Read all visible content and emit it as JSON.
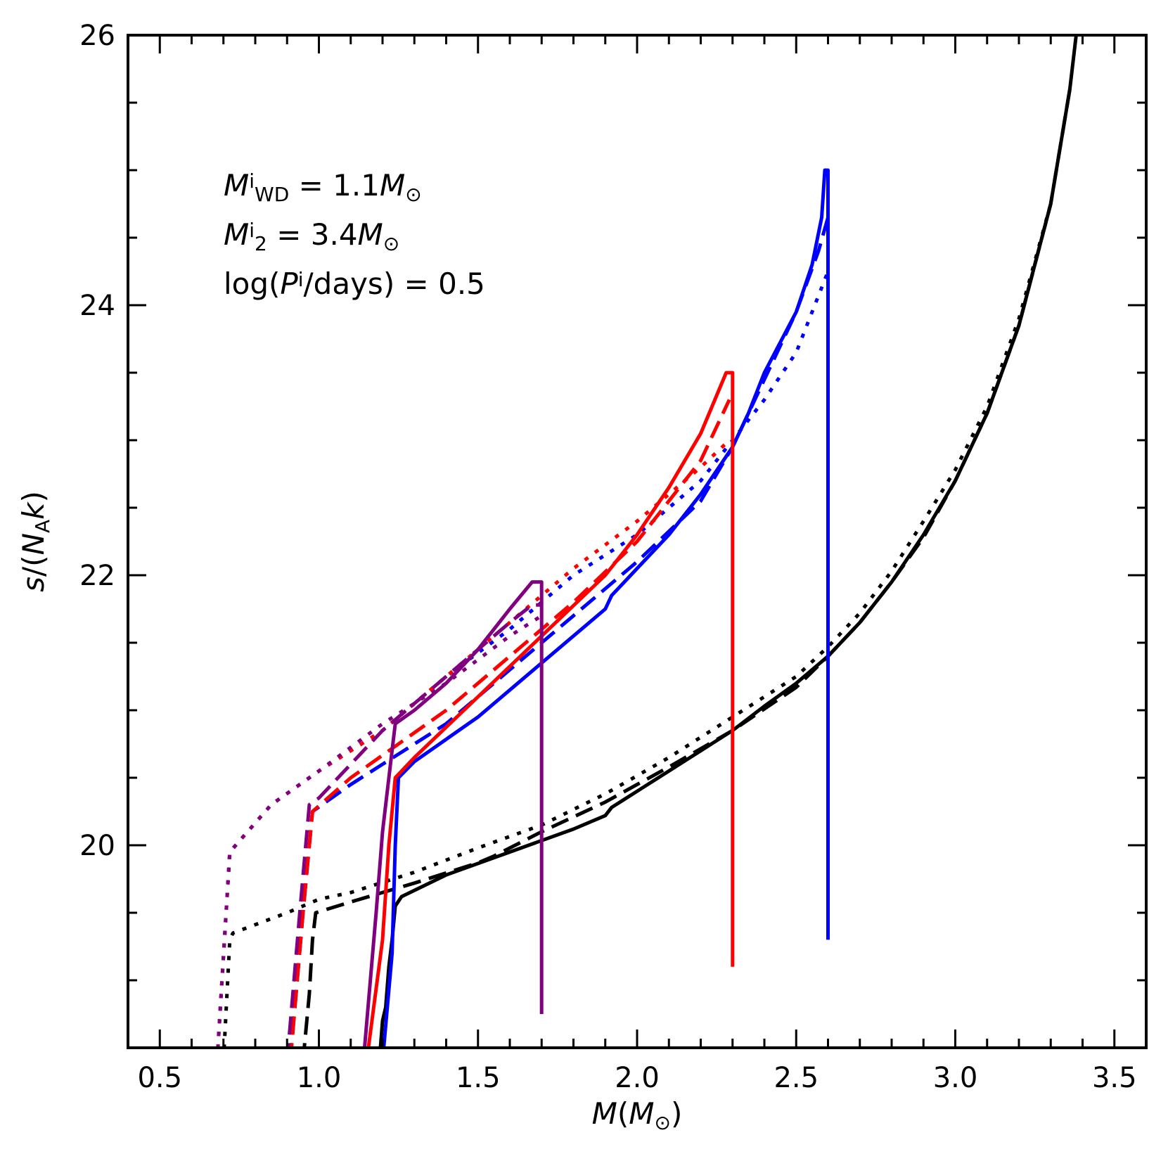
{
  "chart_data": {
    "type": "line",
    "xlabel": {
      "var": "M",
      "unit": "M",
      "unit_sub": "⊙"
    },
    "ylabel": {
      "pre": "s/(",
      "var": "N",
      "sub": "A",
      "var2": "k",
      "post": ")"
    },
    "xlim": [
      0.4,
      3.6
    ],
    "ylim": [
      18.5,
      26
    ],
    "x_ticks": [
      0.5,
      1.0,
      1.5,
      2.0,
      2.5,
      3.0,
      3.5
    ],
    "x_tick_labels": [
      "0.5",
      "1.0",
      "1.5",
      "2.0",
      "2.5",
      "3.0",
      "3.5"
    ],
    "x_minor_ticks": [
      0.6,
      0.7,
      0.8,
      0.9,
      1.1,
      1.2,
      1.3,
      1.4,
      1.6,
      1.7,
      1.8,
      1.9,
      2.1,
      2.2,
      2.3,
      2.4,
      2.6,
      2.7,
      2.8,
      2.9,
      3.1,
      3.2,
      3.3,
      3.4
    ],
    "y_ticks": [
      20,
      22,
      24,
      26
    ],
    "y_tick_labels": [
      "20",
      "22",
      "24",
      "26"
    ],
    "y_minor_ticks": [
      18.5,
      19.0,
      19.5,
      20.5,
      21.0,
      21.5,
      22.5,
      23.0,
      23.5,
      24.5,
      25.0,
      25.5
    ],
    "annotations": [
      {
        "parts": [
          [
            "M",
            "it"
          ],
          [
            "i",
            "sup"
          ],
          [
            "WD",
            "sub"
          ],
          [
            " = 1.1",
            ""
          ],
          [
            "M",
            "it"
          ],
          [
            "⊙",
            "sub"
          ]
        ]
      },
      {
        "parts": [
          [
            "M",
            "it"
          ],
          [
            "i",
            "sup"
          ],
          [
            "2",
            "sub"
          ],
          [
            " = 3.4",
            ""
          ],
          [
            "M",
            "it"
          ],
          [
            "⊙",
            "sub"
          ]
        ]
      },
      {
        "parts": [
          [
            "log(",
            ""
          ],
          [
            "P",
            "it"
          ],
          [
            "i",
            "sup"
          ],
          [
            "/days) = 0.5",
            ""
          ]
        ]
      }
    ],
    "series": [
      {
        "name": "black-solid",
        "color": "#000000",
        "style": "solid",
        "points": [
          [
            1.19,
            18.4
          ],
          [
            1.2,
            18.7
          ],
          [
            1.21,
            18.8
          ],
          [
            1.22,
            19.1
          ],
          [
            1.23,
            19.3
          ],
          [
            1.24,
            19.55
          ],
          [
            1.26,
            19.62
          ],
          [
            1.4,
            19.78
          ],
          [
            1.6,
            19.95
          ],
          [
            1.8,
            20.12
          ],
          [
            1.9,
            20.22
          ],
          [
            1.92,
            20.28
          ],
          [
            2.0,
            20.4
          ],
          [
            2.1,
            20.55
          ],
          [
            2.2,
            20.7
          ],
          [
            2.3,
            20.85
          ],
          [
            2.4,
            21.03
          ],
          [
            2.5,
            21.2
          ],
          [
            2.6,
            21.4
          ],
          [
            2.7,
            21.65
          ],
          [
            2.8,
            21.95
          ],
          [
            2.9,
            22.3
          ],
          [
            3.0,
            22.7
          ],
          [
            3.1,
            23.2
          ],
          [
            3.2,
            23.85
          ],
          [
            3.3,
            24.75
          ],
          [
            3.36,
            25.6
          ],
          [
            3.38,
            26.0
          ]
        ]
      },
      {
        "name": "black-dashed",
        "color": "#000000",
        "style": "dashed",
        "points": [
          [
            0.95,
            18.4
          ],
          [
            0.97,
            18.9
          ],
          [
            0.98,
            19.3
          ],
          [
            0.99,
            19.5
          ],
          [
            1.1,
            19.58
          ],
          [
            1.3,
            19.72
          ],
          [
            1.5,
            19.87
          ],
          [
            1.55,
            19.92
          ],
          [
            1.7,
            20.1
          ],
          [
            1.9,
            20.32
          ],
          [
            2.1,
            20.58
          ],
          [
            2.3,
            20.85
          ],
          [
            2.5,
            21.17
          ],
          [
            2.6,
            21.4
          ],
          [
            2.7,
            21.65
          ],
          [
            2.8,
            21.95
          ],
          [
            2.9,
            22.28
          ],
          [
            3.0,
            22.7
          ],
          [
            3.1,
            23.2
          ],
          [
            3.2,
            23.85
          ],
          [
            3.3,
            24.75
          ],
          [
            3.36,
            25.6
          ]
        ]
      },
      {
        "name": "black-dotted",
        "color": "#000000",
        "style": "dotted",
        "points": [
          [
            0.7,
            18.4
          ],
          [
            0.72,
            19.3
          ],
          [
            0.73,
            19.35
          ],
          [
            0.9,
            19.5
          ],
          [
            1.0,
            19.6
          ],
          [
            1.1,
            19.65
          ],
          [
            1.3,
            19.8
          ],
          [
            1.5,
            19.98
          ],
          [
            1.7,
            20.15
          ],
          [
            1.9,
            20.38
          ],
          [
            2.1,
            20.65
          ],
          [
            2.3,
            20.95
          ],
          [
            2.5,
            21.25
          ],
          [
            2.6,
            21.47
          ],
          [
            2.7,
            21.72
          ],
          [
            2.8,
            22.03
          ],
          [
            2.9,
            22.4
          ],
          [
            3.0,
            22.78
          ],
          [
            3.1,
            23.25
          ],
          [
            3.2,
            23.9
          ],
          [
            3.3,
            24.75
          ]
        ]
      },
      {
        "name": "blue-solid",
        "color": "#0000ff",
        "style": "solid",
        "points": [
          [
            1.2,
            18.4
          ],
          [
            1.23,
            19.2
          ],
          [
            1.24,
            20.0
          ],
          [
            1.25,
            20.5
          ],
          [
            1.3,
            20.62
          ],
          [
            1.5,
            20.95
          ],
          [
            1.7,
            21.35
          ],
          [
            1.9,
            21.75
          ],
          [
            1.92,
            21.85
          ],
          [
            2.0,
            22.05
          ],
          [
            2.1,
            22.3
          ],
          [
            2.2,
            22.6
          ],
          [
            2.3,
            22.95
          ],
          [
            2.35,
            23.2
          ],
          [
            2.4,
            23.5
          ],
          [
            2.5,
            23.95
          ],
          [
            2.55,
            24.3
          ],
          [
            2.58,
            24.65
          ],
          [
            2.59,
            25.0
          ],
          [
            2.6,
            25.0
          ],
          [
            2.6,
            22.0
          ],
          [
            2.6,
            19.3
          ]
        ]
      },
      {
        "name": "blue-dashed",
        "color": "#0000ff",
        "style": "dashed",
        "points": [
          [
            0.91,
            18.4
          ],
          [
            0.95,
            19.5
          ],
          [
            0.98,
            20.25
          ],
          [
            1.1,
            20.45
          ],
          [
            1.2,
            20.6
          ],
          [
            1.4,
            20.9
          ],
          [
            1.6,
            21.3
          ],
          [
            1.8,
            21.7
          ],
          [
            2.0,
            22.1
          ],
          [
            2.2,
            22.55
          ],
          [
            2.3,
            22.95
          ],
          [
            2.4,
            23.45
          ],
          [
            2.5,
            23.95
          ],
          [
            2.57,
            24.4
          ],
          [
            2.6,
            24.65
          ]
        ]
      },
      {
        "name": "blue-dotted",
        "color": "#0000ff",
        "style": "dotted",
        "points": [
          [
            0.68,
            18.4
          ],
          [
            0.72,
            19.95
          ],
          [
            0.85,
            20.3
          ],
          [
            1.0,
            20.55
          ],
          [
            1.2,
            20.85
          ],
          [
            1.4,
            21.25
          ],
          [
            1.6,
            21.6
          ],
          [
            1.8,
            22.0
          ],
          [
            2.0,
            22.3
          ],
          [
            2.2,
            22.7
          ],
          [
            2.3,
            23.0
          ],
          [
            2.4,
            23.3
          ],
          [
            2.5,
            23.65
          ],
          [
            2.6,
            24.25
          ]
        ]
      },
      {
        "name": "red-solid",
        "color": "#ff0000",
        "style": "solid",
        "points": [
          [
            1.15,
            18.4
          ],
          [
            1.2,
            19.3
          ],
          [
            1.22,
            20.0
          ],
          [
            1.24,
            20.5
          ],
          [
            1.3,
            20.65
          ],
          [
            1.5,
            21.1
          ],
          [
            1.7,
            21.55
          ],
          [
            1.9,
            22.0
          ],
          [
            2.0,
            22.3
          ],
          [
            2.1,
            22.65
          ],
          [
            2.2,
            23.05
          ],
          [
            2.28,
            23.5
          ],
          [
            2.3,
            23.5
          ],
          [
            2.3,
            21.0
          ],
          [
            2.3,
            19.1
          ]
        ]
      },
      {
        "name": "red-dashed",
        "color": "#ff0000",
        "style": "dashed",
        "points": [
          [
            0.91,
            18.4
          ],
          [
            0.95,
            19.5
          ],
          [
            0.98,
            20.25
          ],
          [
            1.1,
            20.5
          ],
          [
            1.25,
            20.75
          ],
          [
            1.4,
            21.0
          ],
          [
            1.6,
            21.4
          ],
          [
            1.8,
            21.8
          ],
          [
            2.0,
            22.25
          ],
          [
            2.2,
            22.85
          ],
          [
            2.29,
            23.3
          ]
        ]
      },
      {
        "name": "red-dotted",
        "color": "#ff0000",
        "style": "dotted",
        "points": [
          [
            0.68,
            18.4
          ],
          [
            0.72,
            19.95
          ],
          [
            0.85,
            20.3
          ],
          [
            1.0,
            20.55
          ],
          [
            1.2,
            20.85
          ],
          [
            1.4,
            21.25
          ],
          [
            1.6,
            21.65
          ],
          [
            1.8,
            22.05
          ],
          [
            2.0,
            22.4
          ],
          [
            2.2,
            22.8
          ],
          [
            2.29,
            23.0
          ]
        ]
      },
      {
        "name": "purple-solid",
        "color": "#800080",
        "style": "solid",
        "points": [
          [
            1.14,
            18.4
          ],
          [
            1.18,
            19.5
          ],
          [
            1.2,
            20.1
          ],
          [
            1.21,
            20.3
          ],
          [
            1.22,
            20.5
          ],
          [
            1.24,
            20.9
          ],
          [
            1.3,
            21.0
          ],
          [
            1.4,
            21.2
          ],
          [
            1.5,
            21.45
          ],
          [
            1.6,
            21.75
          ],
          [
            1.67,
            21.95
          ],
          [
            1.7,
            21.95
          ],
          [
            1.7,
            20.0
          ],
          [
            1.7,
            18.75
          ]
        ]
      },
      {
        "name": "purple-dashed",
        "color": "#800080",
        "style": "dashed",
        "points": [
          [
            0.9,
            18.4
          ],
          [
            0.94,
            19.5
          ],
          [
            0.97,
            20.3
          ],
          [
            1.0,
            20.35
          ],
          [
            1.1,
            20.6
          ],
          [
            1.2,
            20.85
          ],
          [
            1.3,
            21.05
          ],
          [
            1.4,
            21.25
          ],
          [
            1.5,
            21.45
          ],
          [
            1.6,
            21.65
          ],
          [
            1.67,
            21.78
          ],
          [
            1.7,
            21.78
          ]
        ]
      },
      {
        "name": "purple-dotted",
        "color": "#800080",
        "style": "dotted",
        "points": [
          [
            0.68,
            18.4
          ],
          [
            0.72,
            19.95
          ],
          [
            0.85,
            20.3
          ],
          [
            1.0,
            20.55
          ],
          [
            1.2,
            20.9
          ],
          [
            1.4,
            21.2
          ],
          [
            1.6,
            21.55
          ],
          [
            1.7,
            21.7
          ]
        ]
      }
    ]
  }
}
